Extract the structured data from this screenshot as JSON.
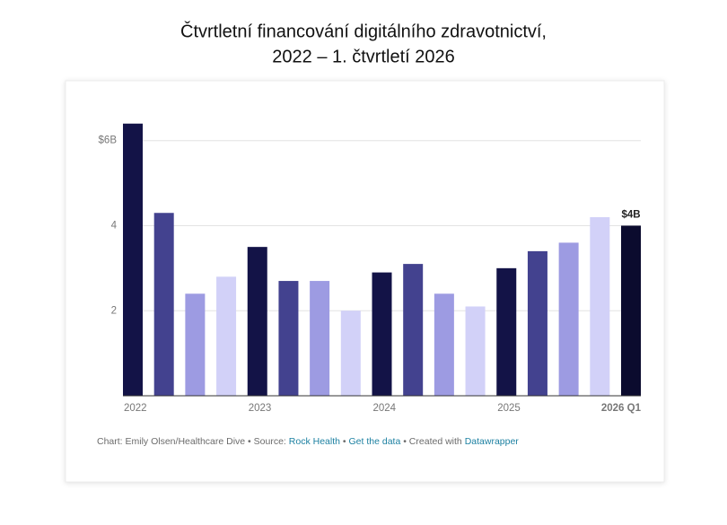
{
  "chart_data": {
    "type": "bar",
    "title": [
      "Čtvrtletní financování digitálního zdravotnictví,",
      "2022 – 1. čtvrtletí 2026"
    ],
    "categories": [
      "2022",
      null,
      null,
      null,
      "2023",
      null,
      null,
      null,
      "2024",
      null,
      null,
      null,
      "2025",
      null,
      null,
      null,
      "2026 Q1"
    ],
    "values": [
      6.4,
      4.3,
      2.4,
      2.8,
      3.5,
      2.7,
      2.7,
      2.0,
      2.9,
      3.1,
      2.4,
      2.1,
      3.0,
      3.4,
      3.6,
      4.2,
      4.0
    ],
    "value_labels": [
      null,
      null,
      null,
      null,
      null,
      null,
      null,
      null,
      null,
      null,
      null,
      null,
      null,
      null,
      null,
      null,
      "$4B"
    ],
    "colors": [
      "#131347",
      "#43428f",
      "#9d9be2",
      "#d2d1f8",
      "#131347",
      "#43428f",
      "#9d9be2",
      "#d2d1f8",
      "#131347",
      "#43428f",
      "#9d9be2",
      "#d2d1f8",
      "#131347",
      "#43428f",
      "#9d9be2",
      "#d2d1f8",
      "#0b0b2e"
    ],
    "ylim": [
      0,
      6.5
    ],
    "yticks": [
      2,
      4,
      {
        "value": 6,
        "label": "$6B"
      }
    ],
    "grid": true,
    "footer": {
      "credit": "Chart: Emily Olsen/Healthcare Dive • Source:",
      "source": "Rock Health",
      "sep": "•",
      "get_data": "Get the data",
      "created": "• Created with",
      "tool": "Datawrapper"
    }
  }
}
